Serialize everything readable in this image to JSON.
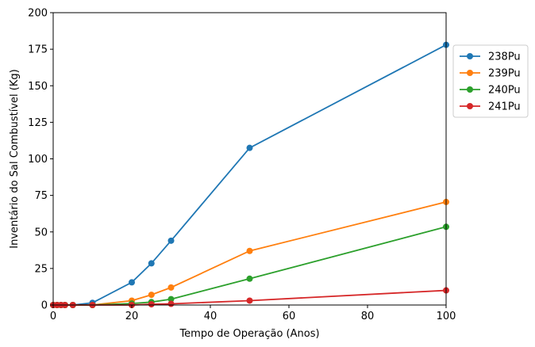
{
  "chart_data": {
    "type": "line",
    "title": "",
    "xlabel": "Tempo de Operação (Anos)",
    "ylabel": "Inventário do Sal Combustível (Kg)",
    "xlim": [
      0,
      100
    ],
    "ylim": [
      0,
      200
    ],
    "xticks": [
      0,
      20,
      40,
      60,
      80,
      100
    ],
    "yticks": [
      0,
      25,
      50,
      75,
      100,
      125,
      150,
      175,
      200
    ],
    "x": [
      0,
      1,
      2,
      3,
      5,
      10,
      20,
      25,
      30,
      50,
      100
    ],
    "grid": false,
    "legend_position": "right",
    "series": [
      {
        "name": "238Pu",
        "color": "#1f77b4",
        "values": [
          0,
          0,
          0,
          0,
          0,
          1.5,
          15.5,
          28.5,
          44,
          107.5,
          178
        ]
      },
      {
        "name": "239Pu",
        "color": "#ff7f0e",
        "values": [
          0,
          0,
          0,
          0,
          0,
          0,
          3,
          7,
          12,
          37,
          70.5
        ]
      },
      {
        "name": "240Pu",
        "color": "#2ca02c",
        "values": [
          0,
          0,
          0,
          0,
          0,
          0,
          1,
          2,
          4,
          18,
          53.5
        ]
      },
      {
        "name": "241Pu",
        "color": "#d62728",
        "values": [
          0,
          0,
          0,
          0,
          0,
          0,
          0,
          0.5,
          0.8,
          3,
          10
        ]
      }
    ]
  }
}
